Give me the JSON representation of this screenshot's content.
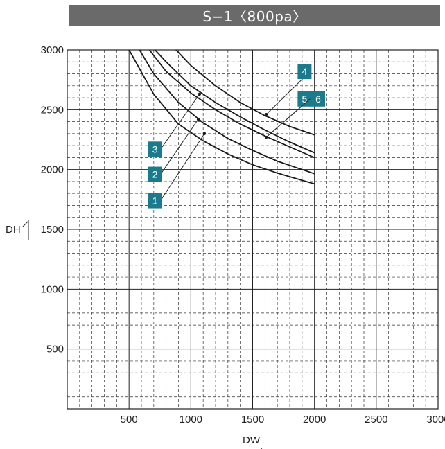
{
  "chart_data": {
    "type": "line",
    "title": "S−1〈800pa〉",
    "xlabel": "DW",
    "ylabel": "DH",
    "xlim": [
      0,
      3000
    ],
    "ylim": [
      0,
      3000
    ],
    "x_ticks": [
      "500",
      "1000",
      "1500",
      "2000",
      "2500",
      "3000"
    ],
    "y_ticks": [
      "500",
      "1000",
      "1500",
      "2000",
      "2500",
      "3000"
    ],
    "grid": "major solid, minor dashed",
    "series": [
      {
        "name": "1",
        "x": [
          500,
          700,
          900,
          1100,
          1300,
          1500,
          1700,
          1900,
          2000
        ],
        "y": [
          3000,
          2630,
          2380,
          2240,
          2130,
          2040,
          1970,
          1910,
          1880
        ],
        "marker": {
          "x": 1110,
          "y": 2300
        }
      },
      {
        "name": "2",
        "x": [
          585,
          700,
          900,
          1100,
          1300,
          1500,
          1700,
          1900,
          2000
        ],
        "y": [
          3000,
          2800,
          2560,
          2390,
          2260,
          2160,
          2070,
          2000,
          1965
        ],
        "marker": {
          "x": 1060,
          "y": 2420
        }
      },
      {
        "name": "3",
        "x": [
          665,
          800,
          1000,
          1200,
          1400,
          1600,
          1800,
          2000
        ],
        "y": [
          3000,
          2820,
          2640,
          2500,
          2380,
          2280,
          2190,
          2100
        ],
        "marker": {
          "x": 1070,
          "y": 2630
        }
      },
      {
        "name": "4",
        "x": [
          880,
          1000,
          1200,
          1400,
          1600,
          1800,
          2000
        ],
        "y": [
          3000,
          2870,
          2700,
          2560,
          2450,
          2360,
          2290
        ],
        "marker": {
          "x": 1610,
          "y": 2460
        }
      },
      {
        "name": "5 6",
        "x": [
          710,
          800,
          1000,
          1200,
          1400,
          1600,
          1800,
          2000
        ],
        "y": [
          3000,
          2900,
          2700,
          2560,
          2440,
          2330,
          2230,
          2140
        ],
        "marker": {
          "x": 1610,
          "y": 2270
        }
      }
    ],
    "badges": [
      {
        "text": "4",
        "x": 1920,
        "y": 2820,
        "target": 3
      },
      {
        "text": "5",
        "x": 1920,
        "y": 2590,
        "target": 4
      },
      {
        "text": "6",
        "x": 2030,
        "y": 2590,
        "target": 4
      },
      {
        "text": "3",
        "x": 710,
        "y": 2170,
        "target": 2
      },
      {
        "text": "2",
        "x": 710,
        "y": 1960,
        "target": 1
      },
      {
        "text": "1",
        "x": 710,
        "y": 1740,
        "target": 0
      }
    ],
    "colors": {
      "curve": "#1a1a1a",
      "badge": "#1b7b8c",
      "title_bg": "#6a6a6a",
      "grid": "#222222"
    }
  }
}
